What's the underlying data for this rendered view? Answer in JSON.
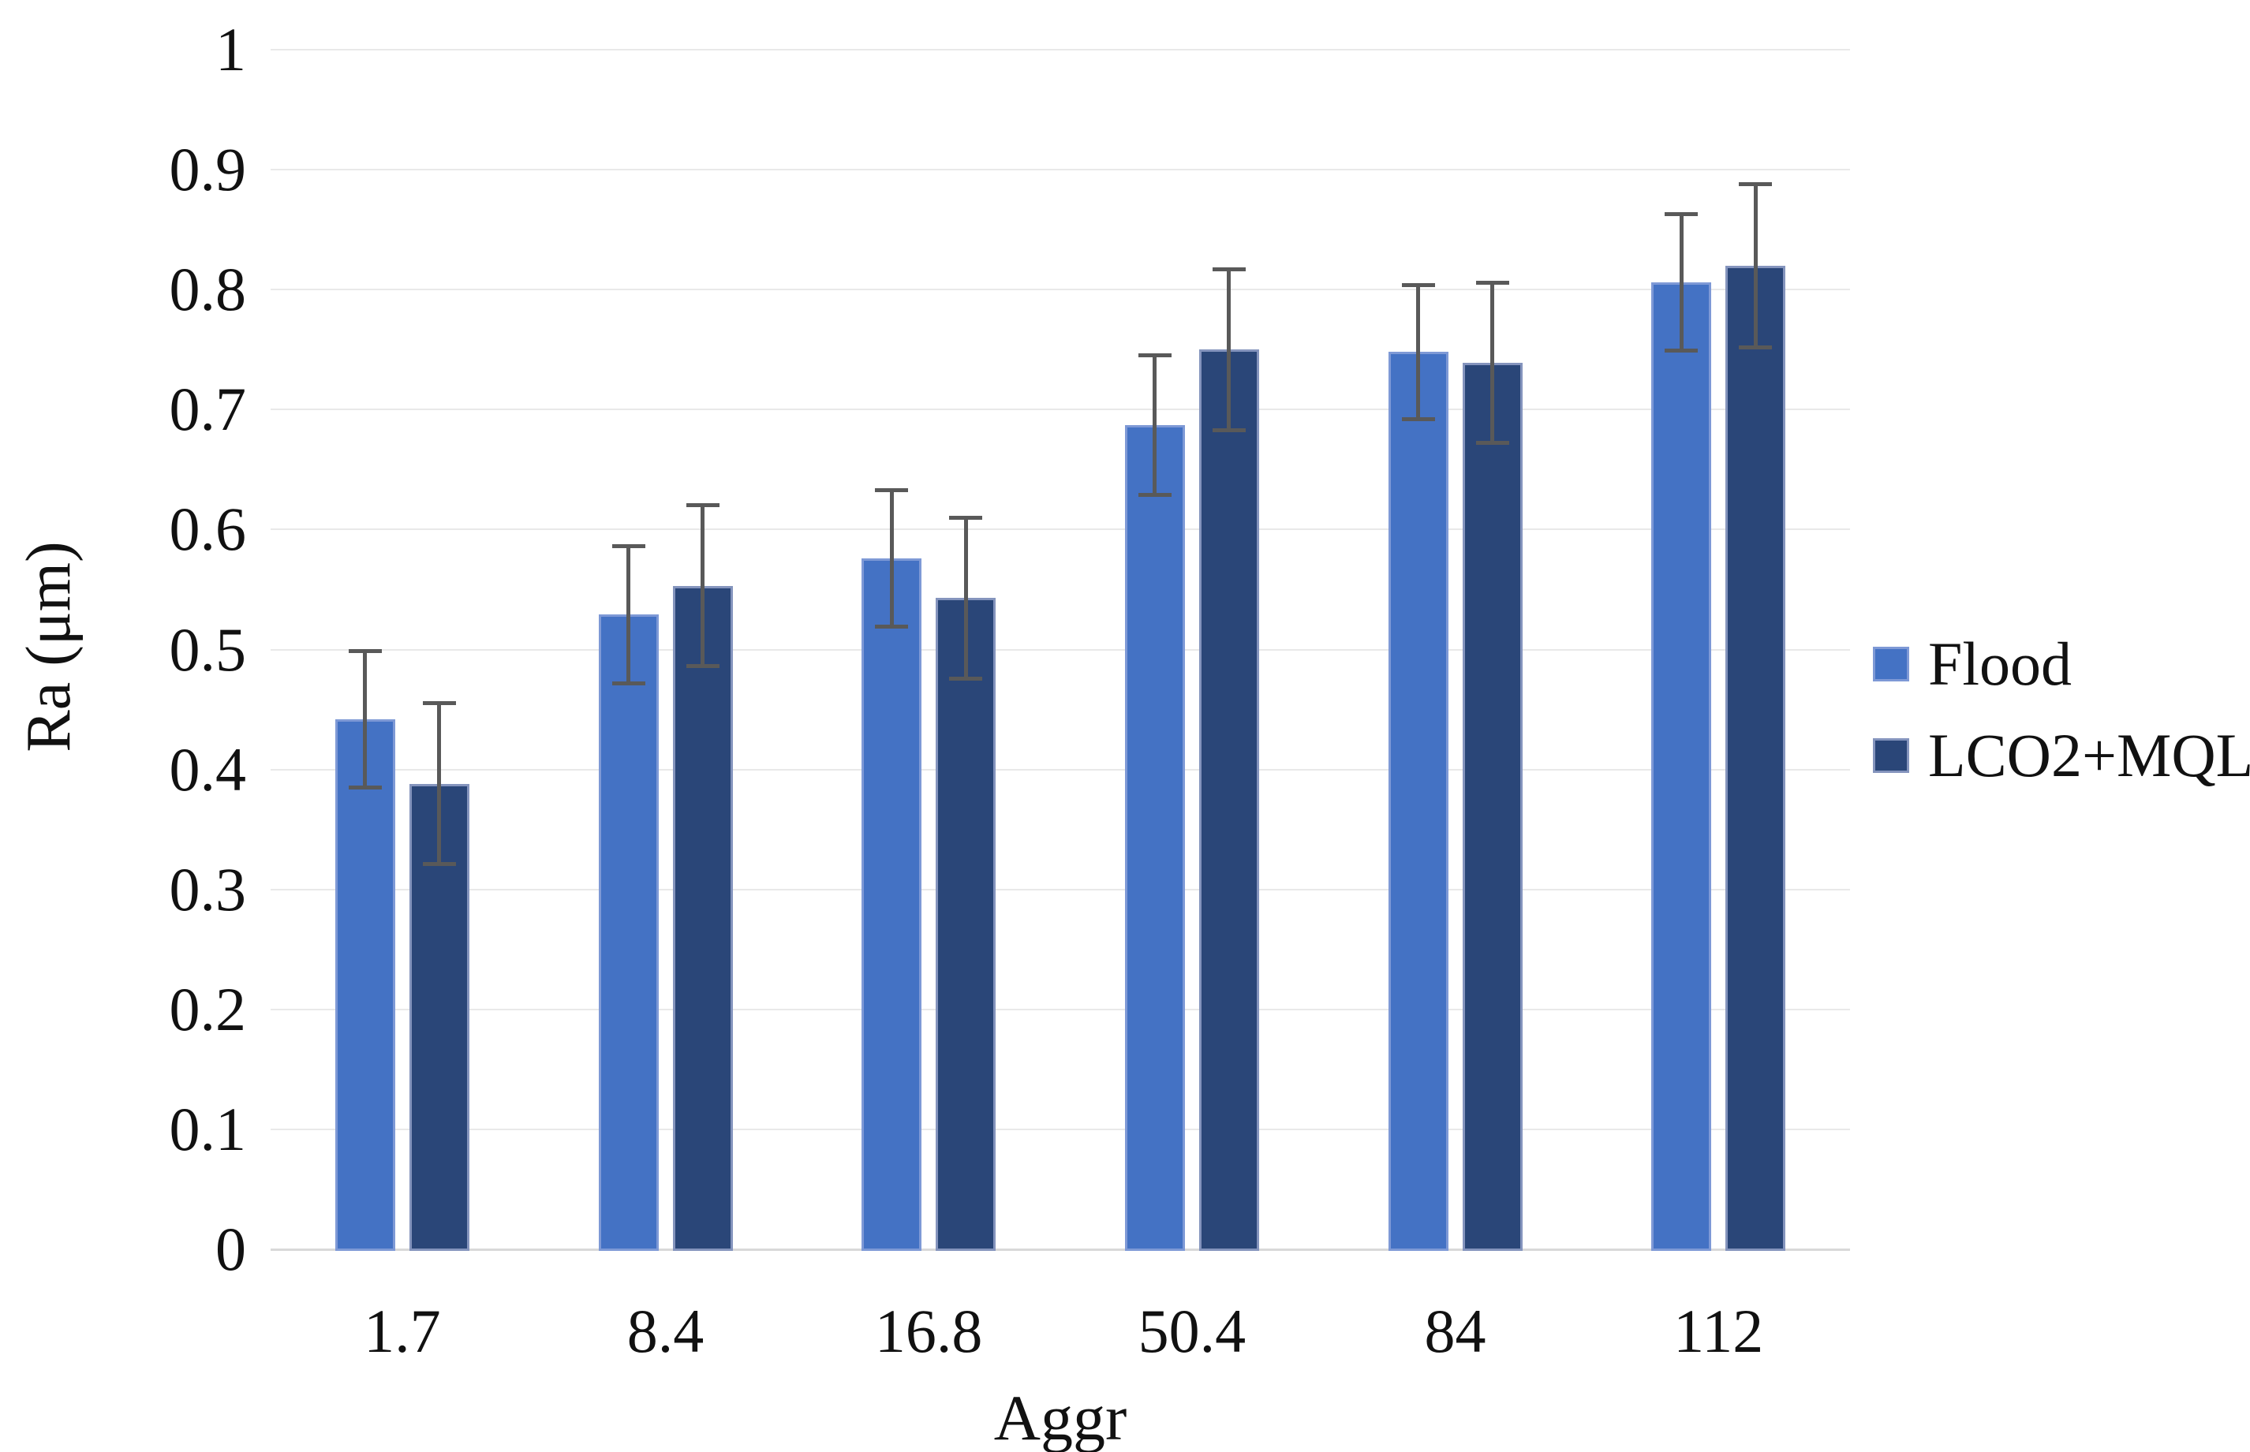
{
  "chart_data": {
    "type": "bar",
    "title": "",
    "xlabel": "Aggr",
    "ylabel": "Ra (μm)",
    "categories": [
      "1.7",
      "8.4",
      "16.8",
      "50.4",
      "84",
      "112"
    ],
    "series": [
      {
        "name": "Flood",
        "color": "#4472C4",
        "border_color": "#7E99D6",
        "values": [
          0.442,
          0.529,
          0.576,
          0.687,
          0.748,
          0.806
        ],
        "errors": [
          0.057,
          0.057,
          0.057,
          0.058,
          0.056,
          0.057
        ]
      },
      {
        "name": "LCO2+MQL",
        "color": "#2A4678",
        "border_color": "#8494BD",
        "values": [
          0.388,
          0.553,
          0.543,
          0.75,
          0.739,
          0.82
        ],
        "errors": [
          0.067,
          0.067,
          0.067,
          0.067,
          0.067,
          0.068
        ]
      }
    ],
    "ylim": [
      0,
      1
    ],
    "ytick_step": 0.1,
    "ytick_labels": [
      "0",
      "0.1",
      "0.2",
      "0.3",
      "0.4",
      "0.5",
      "0.6",
      "0.7",
      "0.8",
      "0.9",
      "1"
    ],
    "grid": "horizontal",
    "gridline_color": "#E9E9E9",
    "axis_line_color": "#D9D9D9",
    "error_bar_color": "#595959",
    "legend_position": "right",
    "background_color": "#FFFFFF"
  }
}
